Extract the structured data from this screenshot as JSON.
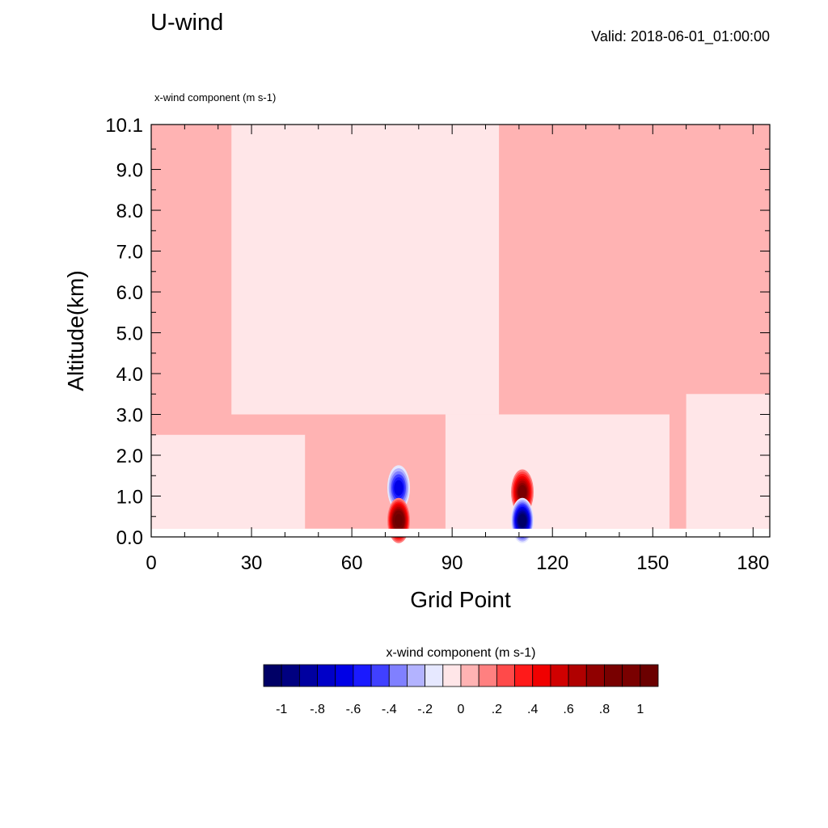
{
  "header": {
    "title": "U-wind",
    "valid": "Valid: 2018-06-01_01:00:00",
    "field_label": "x-wind component   (m s-1)"
  },
  "colors": {
    "neg_light": "#e6e8ff",
    "pos_light": "#ffe6e8"
  },
  "chart_data": {
    "type": "heatmap",
    "title": "U-wind",
    "subtitle": "x-wind component   (m s-1)",
    "xlabel": "Grid Point",
    "ylabel": "Altitude(km)",
    "xlim": [
      0,
      185
    ],
    "ylim": [
      0,
      10.1
    ],
    "x_ticks": [
      "0",
      "30",
      "60",
      "90",
      "120",
      "150",
      "180"
    ],
    "y_ticks": [
      "0.0",
      "1.0",
      "2.0",
      "3.0",
      "4.0",
      "5.0",
      "6.0",
      "7.0",
      "8.0",
      "9.0",
      "10.1"
    ],
    "field_bottom_km": 0.2,
    "background_regions": [
      {
        "x": [
          0,
          185
        ],
        "y": [
          0.2,
          10.1
        ],
        "value": 0.05
      },
      {
        "x": [
          0,
          46
        ],
        "y": [
          0.2,
          2.5
        ],
        "value": -0.05
      },
      {
        "x": [
          24,
          104
        ],
        "y": [
          3.0,
          10.1
        ],
        "value": -0.05
      },
      {
        "x": [
          88,
          155
        ],
        "y": [
          0.2,
          3.0
        ],
        "value": -0.05
      },
      {
        "x": [
          160,
          185
        ],
        "y": [
          0.2,
          3.5
        ],
        "value": -0.05
      }
    ],
    "features": [
      {
        "x": 74,
        "y": 1.2,
        "value": -0.6,
        "note": "negative core"
      },
      {
        "x": 74,
        "y": 0.4,
        "value": 1.0,
        "note": "positive core"
      },
      {
        "x": 111,
        "y": 1.1,
        "value": 0.8,
        "note": "positive core"
      },
      {
        "x": 111,
        "y": 0.4,
        "value": -1.0,
        "note": "negative core"
      }
    ],
    "colorbar": {
      "label": "x-wind component  (m s-1)",
      "tick_labels": [
        "-1",
        "-.8",
        "-.6",
        "-.4",
        "-.2",
        "0",
        ".2",
        ".4",
        ".6",
        ".8",
        "1"
      ],
      "levels": [
        -1.1,
        -1.0,
        -0.9,
        -0.8,
        -0.7,
        -0.6,
        -0.5,
        -0.4,
        -0.3,
        -0.2,
        -0.1,
        0,
        0.1,
        0.2,
        0.3,
        0.4,
        0.5,
        0.6,
        0.7,
        0.8,
        0.9,
        1.0,
        1.1
      ],
      "colors": [
        "#000066",
        "#000080",
        "#0000a0",
        "#0000c8",
        "#0000e6",
        "#1a1aff",
        "#4040ff",
        "#8080ff",
        "#b3b3ff",
        "#e6e8ff",
        "#ffe6e8",
        "#ffb3b3",
        "#ff8080",
        "#ff4a4a",
        "#ff1a1a",
        "#f00000",
        "#d00000",
        "#b00000",
        "#900000",
        "#780000",
        "#7a0000",
        "#6b0000"
      ]
    }
  }
}
